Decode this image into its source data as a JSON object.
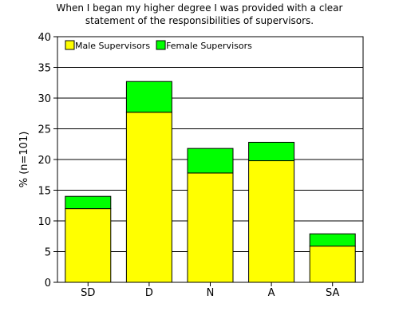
{
  "chart_data": {
    "type": "bar",
    "stacked": true,
    "title_line1": "When I began my higher degree I was provided with a clear",
    "title_line2": "statement of the responsibilities of supervisors.",
    "xlabel": "",
    "ylabel": "% (n=101)",
    "categories": [
      "SD",
      "D",
      "N",
      "A",
      "SA"
    ],
    "series": [
      {
        "name": "Male Supervisors",
        "values": [
          12,
          27.7,
          17.8,
          19.8,
          5.9
        ],
        "color": "#ffff00"
      },
      {
        "name": "Female Supervisors",
        "values": [
          2,
          5,
          4,
          3,
          2
        ],
        "color": "#00ff00"
      }
    ],
    "ylim": [
      0,
      40
    ],
    "yticks": [
      0,
      5,
      10,
      15,
      20,
      25,
      30,
      35,
      40
    ],
    "grid": true,
    "legend_position": "top-left"
  }
}
